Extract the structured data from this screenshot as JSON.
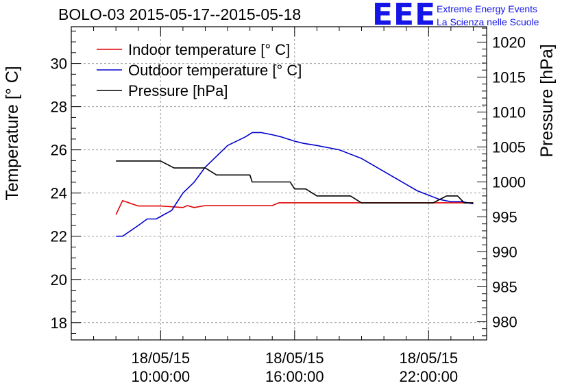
{
  "header": {
    "title": "BOLO-03 2015-05-17--2015-05-18",
    "logo_text": "EEE",
    "logo_line1": "Extreme Energy Events",
    "logo_line2": "La Scienza nelle Scuole"
  },
  "colors": {
    "indoor": "#e00000",
    "outdoor": "#0000cc",
    "pressure": "#000000",
    "logo": "#1515e8"
  },
  "chart_data": {
    "type": "line",
    "title": "BOLO-03 2015-05-17--2015-05-18",
    "ylabel": "Temperature [° C]",
    "y2label": "Pressure [hPa]",
    "xlabel": "",
    "x_unit": "hours",
    "xlim": [
      6.0,
      24.6
    ],
    "ylim": [
      17.2,
      31.7
    ],
    "y2lim": [
      977.4,
      1022.2
    ],
    "x_ticks": [
      {
        "x": 10,
        "line1": "18/05/15",
        "line2": "10:00:00"
      },
      {
        "x": 16,
        "line1": "18/05/15",
        "line2": "16:00:00"
      },
      {
        "x": 22,
        "line1": "18/05/15",
        "line2": "22:00:00"
      }
    ],
    "y_ticks": [
      18,
      20,
      22,
      24,
      26,
      28,
      30
    ],
    "y2_ticks": [
      980,
      985,
      990,
      995,
      1000,
      1005,
      1010,
      1015,
      1020
    ],
    "grid": true,
    "legend": "top-left",
    "series": [
      {
        "name": "Indoor temperature [° C]",
        "axis": "left",
        "color": "#e00000",
        "x": [
          8.0,
          8.3,
          9.0,
          10.0,
          11.0,
          11.2,
          11.5,
          12.0,
          15.0,
          15.3,
          18.0,
          22.0,
          22.5,
          23.0,
          23.5,
          24.0
        ],
        "y": [
          23.0,
          23.65,
          23.4,
          23.4,
          23.33,
          23.42,
          23.33,
          23.42,
          23.42,
          23.55,
          23.55,
          23.55,
          23.55,
          23.55,
          23.55,
          23.55
        ]
      },
      {
        "name": "Outdoor temperature [° C]",
        "axis": "left",
        "color": "#0000cc",
        "x": [
          8.0,
          8.3,
          9.0,
          9.4,
          9.8,
          10.5,
          11.0,
          11.5,
          12.0,
          13.0,
          13.8,
          14.1,
          14.5,
          15.0,
          15.4,
          16.0,
          16.4,
          17.0,
          17.5,
          18.0,
          19.0,
          20.0,
          21.0,
          21.5,
          22.0,
          22.5,
          23.0,
          23.5,
          24.0
        ],
        "y": [
          22.0,
          22.0,
          22.5,
          22.8,
          22.8,
          23.2,
          24.0,
          24.5,
          25.2,
          26.2,
          26.6,
          26.8,
          26.8,
          26.7,
          26.6,
          26.4,
          26.3,
          26.2,
          26.1,
          26.0,
          25.6,
          25.0,
          24.4,
          24.1,
          23.9,
          23.7,
          23.6,
          23.6,
          23.5
        ]
      },
      {
        "name": "Pressure [hPa]",
        "axis": "right",
        "color": "#000000",
        "x": [
          8.0,
          10.0,
          10.6,
          12.0,
          12.5,
          14.0,
          14.1,
          15.8,
          16.0,
          16.5,
          17.0,
          18.5,
          19.0,
          20.0,
          21.0,
          22.0,
          22.2,
          22.5,
          22.8,
          23.3,
          23.6,
          24.0
        ],
        "y": [
          1003.0,
          1003.0,
          1002.0,
          1002.0,
          1001.0,
          1001.0,
          1000.0,
          1000.0,
          999.0,
          999.0,
          998.0,
          998.0,
          997.0,
          997.0,
          997.0,
          997.0,
          997.0,
          997.5,
          998.0,
          998.0,
          997.0,
          997.0
        ]
      }
    ]
  }
}
